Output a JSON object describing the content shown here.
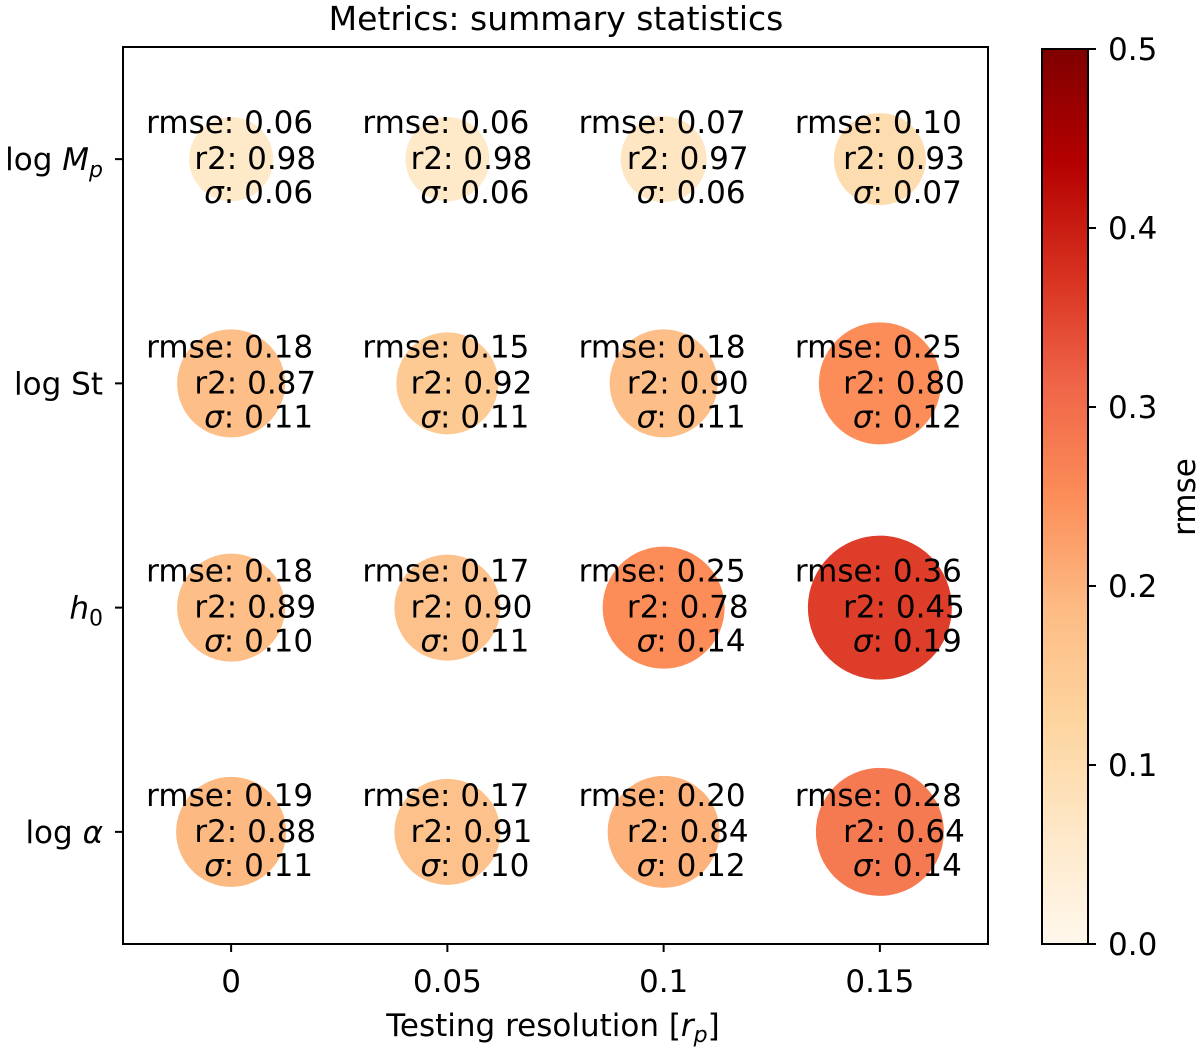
{
  "chart_data": {
    "type": "scatter",
    "title": "Metrics: summary statistics",
    "xlabel": {
      "text": "Testing resolution [",
      "math": "r",
      "sub": "p",
      "after": "]"
    },
    "x_ticks": [
      "0",
      "0.05",
      "0.1",
      "0.15"
    ],
    "x_values": [
      0,
      0.05,
      0.1,
      0.15
    ],
    "xlim": [
      -0.025,
      0.175
    ],
    "y_ticks": [
      {
        "text": "log ",
        "math": "M",
        "sub": "p"
      },
      {
        "text": "log St",
        "math": "",
        "sub": ""
      },
      {
        "text": "",
        "math": "h",
        "sub": "0"
      },
      {
        "text": "log ",
        "math": "α",
        "sub": ""
      }
    ],
    "colorbar": {
      "label": "rmse",
      "range": [
        0,
        0.5
      ],
      "ticks": [
        "0.0",
        "0.1",
        "0.2",
        "0.3",
        "0.4",
        "0.5"
      ],
      "colormap": "OrRd",
      "stops": [
        "#fff7ec",
        "#fee8c8",
        "#fdd49e",
        "#fdbb84",
        "#fc8d59",
        "#ef6548",
        "#d7301f",
        "#b30000",
        "#7f0000"
      ]
    },
    "size_encodes": "rmse",
    "color_encodes": "rmse",
    "metric_labels": {
      "rmse": "rmse: ",
      "r2": "r2: ",
      "sigma": "σ"
    },
    "rows": [
      {
        "rmse": [
          0.06,
          0.06,
          0.07,
          0.1
        ],
        "r2": [
          0.98,
          0.98,
          0.97,
          0.93
        ],
        "sigma": [
          0.06,
          0.06,
          0.06,
          0.07
        ]
      },
      {
        "rmse": [
          0.18,
          0.15,
          0.18,
          0.25
        ],
        "r2": [
          0.87,
          0.92,
          0.9,
          0.8
        ],
        "sigma": [
          0.11,
          0.11,
          0.11,
          0.12
        ]
      },
      {
        "rmse": [
          0.18,
          0.17,
          0.25,
          0.36
        ],
        "r2": [
          0.89,
          0.9,
          0.78,
          0.45
        ],
        "sigma": [
          0.1,
          0.11,
          0.14,
          0.19
        ]
      },
      {
        "rmse": [
          0.19,
          0.17,
          0.2,
          0.28
        ],
        "r2": [
          0.88,
          0.91,
          0.84,
          0.64
        ],
        "sigma": [
          0.11,
          0.1,
          0.12,
          0.14
        ]
      }
    ]
  }
}
